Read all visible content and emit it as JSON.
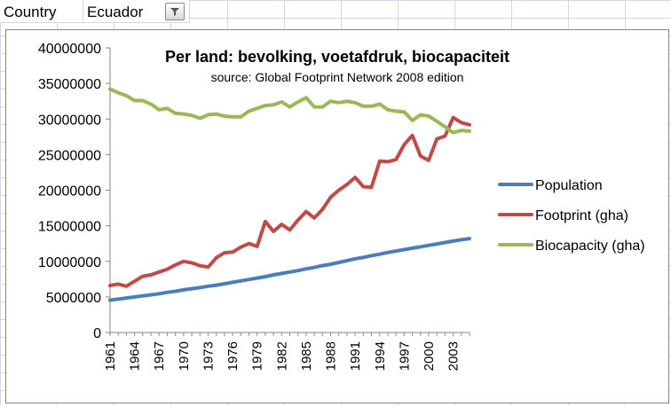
{
  "sheet": {
    "country_label": "Country",
    "country_value": "Ecuador",
    "filter_icon": "filter-dropdown-icon"
  },
  "chart_data": {
    "type": "line",
    "title": "Per land: bevolking, voetafdruk, biocapaciteit",
    "subtitle": "source: Global Footprint Network 2008 edition",
    "xlabel": "",
    "ylabel": "",
    "ylim": [
      0,
      40000000
    ],
    "yticks": [
      0,
      5000000,
      10000000,
      15000000,
      20000000,
      25000000,
      30000000,
      35000000,
      40000000
    ],
    "xticks": [
      "1961",
      "1964",
      "1967",
      "1970",
      "1973",
      "1976",
      "1979",
      "1982",
      "1985",
      "1988",
      "1991",
      "1994",
      "1997",
      "2000",
      "2003"
    ],
    "x": [
      1961,
      1962,
      1963,
      1964,
      1965,
      1966,
      1967,
      1968,
      1969,
      1970,
      1971,
      1972,
      1973,
      1974,
      1975,
      1976,
      1977,
      1978,
      1979,
      1980,
      1981,
      1982,
      1983,
      1984,
      1985,
      1986,
      1987,
      1988,
      1989,
      1990,
      1991,
      1992,
      1993,
      1994,
      1995,
      1996,
      1997,
      1998,
      1999,
      2000,
      2001,
      2002,
      2003,
      2004,
      2005
    ],
    "grid": false,
    "legend": "right",
    "series": [
      {
        "name": "Population",
        "color": "#4a7ebb",
        "values": [
          4550000,
          4700000,
          4850000,
          5000000,
          5150000,
          5300000,
          5450000,
          5650000,
          5800000,
          6000000,
          6150000,
          6300000,
          6500000,
          6650000,
          6850000,
          7050000,
          7250000,
          7450000,
          7650000,
          7850000,
          8100000,
          8300000,
          8500000,
          8700000,
          8950000,
          9150000,
          9400000,
          9600000,
          9850000,
          10100000,
          10350000,
          10550000,
          10800000,
          11000000,
          11250000,
          11450000,
          11650000,
          11850000,
          12050000,
          12250000,
          12450000,
          12650000,
          12850000,
          13050000,
          13200000
        ]
      },
      {
        "name": "Footprint (gha)",
        "color": "#be4b48",
        "values": [
          6600000,
          6800000,
          6500000,
          7200000,
          7900000,
          8100000,
          8500000,
          8900000,
          9500000,
          10000000,
          9800000,
          9400000,
          9200000,
          10500000,
          11200000,
          11300000,
          12000000,
          12500000,
          12100000,
          15600000,
          14200000,
          15200000,
          14400000,
          15800000,
          17000000,
          16100000,
          17300000,
          19000000,
          20000000,
          20800000,
          21800000,
          20500000,
          20400000,
          24100000,
          24000000,
          24300000,
          26400000,
          27700000,
          24800000,
          24200000,
          27200000,
          27600000,
          30200000,
          29500000,
          29200000
        ]
      },
      {
        "name": "Biocapacity (gha)",
        "color": "#98b954",
        "values": [
          34200000,
          33700000,
          33300000,
          32600000,
          32600000,
          32100000,
          31300000,
          31500000,
          30800000,
          30700000,
          30500000,
          30100000,
          30600000,
          30700000,
          30400000,
          30300000,
          30300000,
          31100000,
          31500000,
          31900000,
          32000000,
          32400000,
          31700000,
          32400000,
          33000000,
          31700000,
          31700000,
          32500000,
          32300000,
          32500000,
          32300000,
          31800000,
          31800000,
          32100000,
          31300000,
          31100000,
          31000000,
          29800000,
          30600000,
          30400000,
          29700000,
          28900000,
          28100000,
          28400000,
          28300000
        ]
      }
    ]
  }
}
